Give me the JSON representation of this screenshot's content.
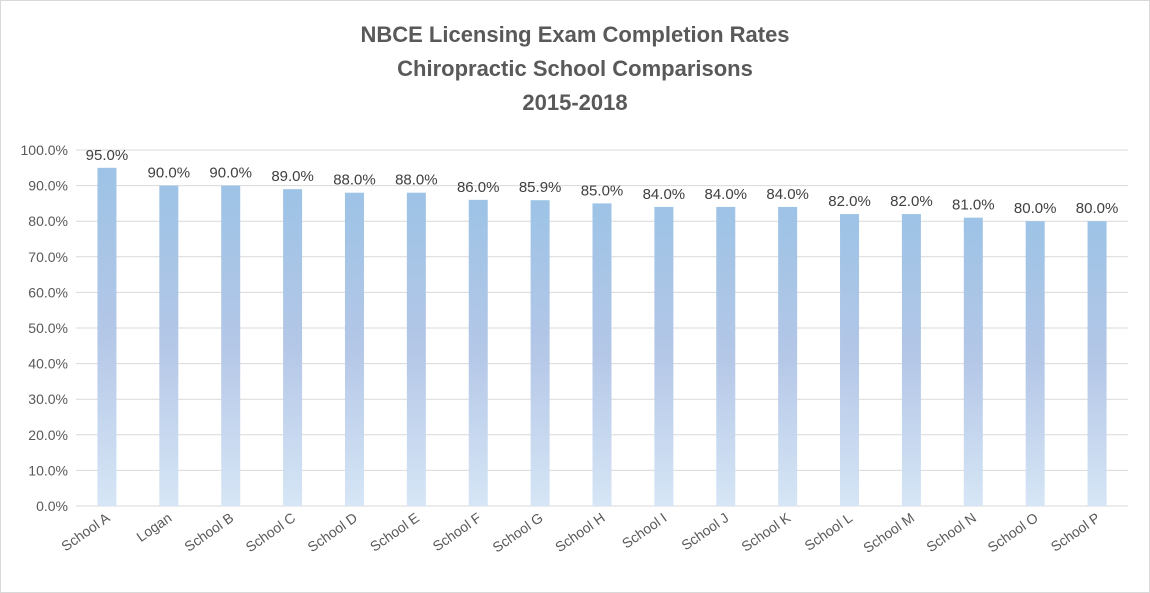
{
  "chart_data": {
    "type": "bar",
    "title": [
      "NBCE Licensing Exam Completion Rates",
      "Chiropractic School Comparisons",
      "2015-2018"
    ],
    "categories": [
      "School A",
      "Logan",
      "School B",
      "School C",
      "School D",
      "School E",
      "School F",
      "School G",
      "School H",
      "School I",
      "School J",
      "School K",
      "School L",
      "School M",
      "School N",
      "School O",
      "School P"
    ],
    "values": [
      95.0,
      90.0,
      90.0,
      89.0,
      88.0,
      88.0,
      86.0,
      85.9,
      85.0,
      84.0,
      84.0,
      84.0,
      82.0,
      82.0,
      81.0,
      80.0,
      80.0
    ],
    "data_labels": [
      "95.0%",
      "90.0%",
      "90.0%",
      "89.0%",
      "88.0%",
      "88.0%",
      "86.0%",
      "85.9%",
      "85.0%",
      "84.0%",
      "84.0%",
      "84.0%",
      "82.0%",
      "82.0%",
      "81.0%",
      "80.0%",
      "80.0%"
    ],
    "y_ticks": [
      "0.0%",
      "10.0%",
      "20.0%",
      "30.0%",
      "40.0%",
      "50.0%",
      "60.0%",
      "70.0%",
      "80.0%",
      "90.0%",
      "100.0%"
    ],
    "ylim": [
      0,
      100
    ],
    "xlabel": "",
    "ylabel": "",
    "grid": true,
    "legend": "none",
    "colors": {
      "bar_top": "#9dc3e6",
      "bar_mid": "#b4c7e7",
      "bar_bottom": "#d6e6f6",
      "grid": "#d9d9d9",
      "text": "#595959",
      "label_text": "#404040"
    }
  }
}
